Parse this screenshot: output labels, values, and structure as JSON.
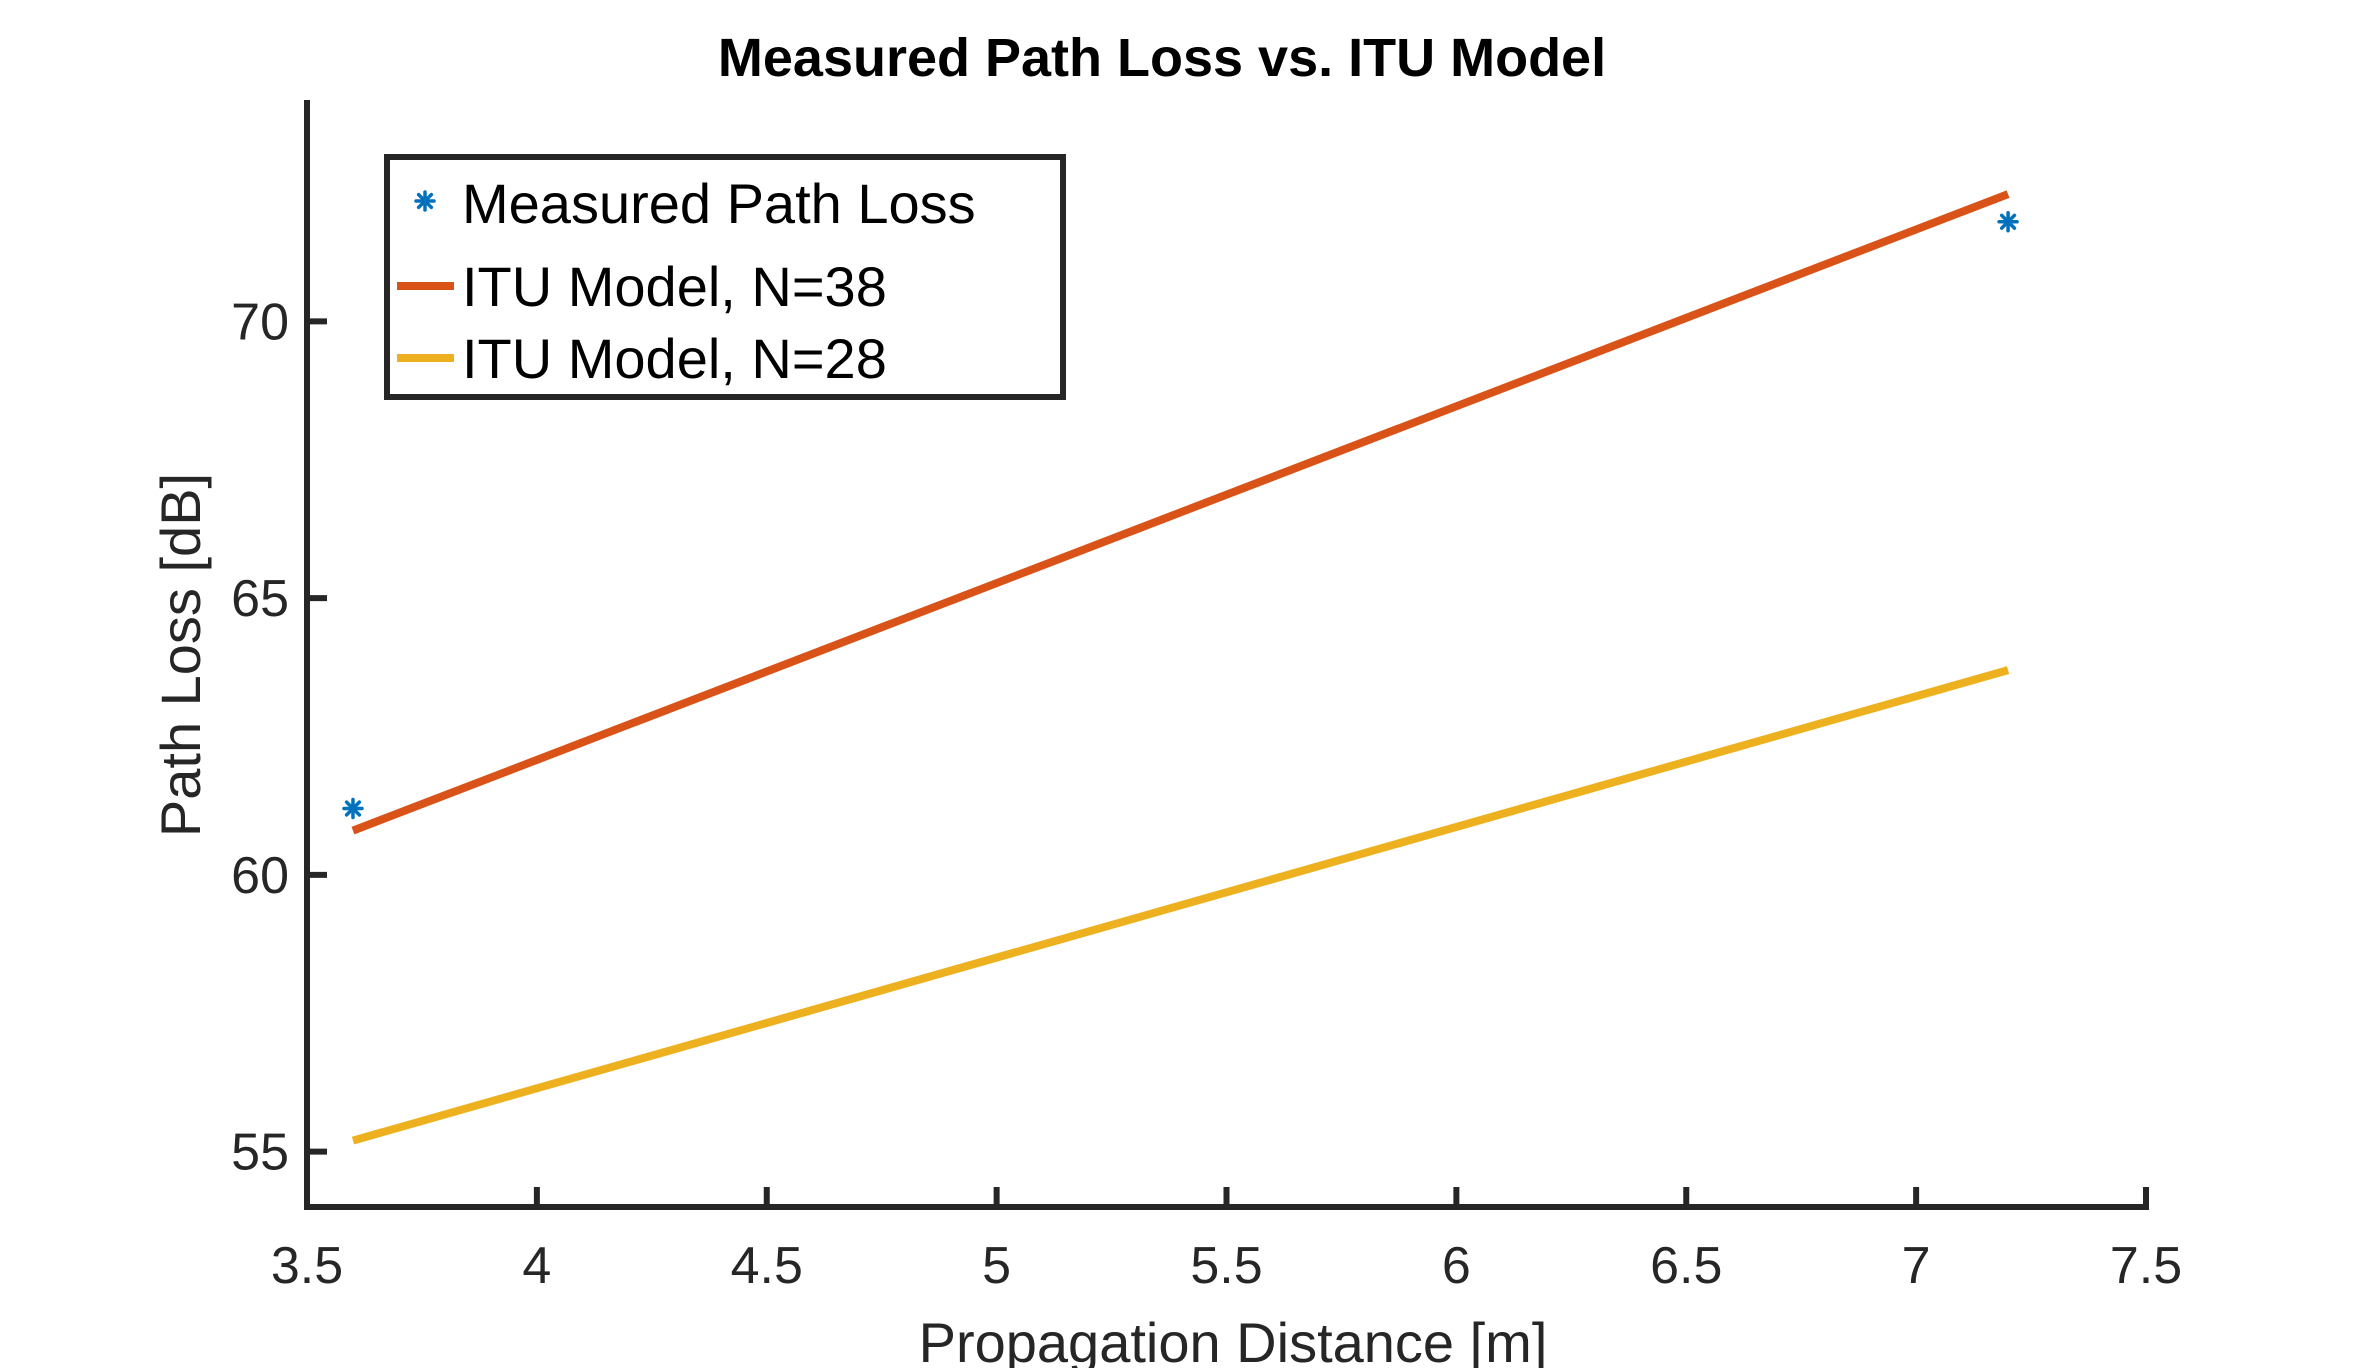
{
  "chart_data": {
    "type": "line",
    "title": "Measured Path Loss vs. ITU Model",
    "xlabel": "Propagation Distance [m]",
    "ylabel": "Path Loss [dB]",
    "xlim": [
      3.5,
      7.5
    ],
    "ylim": [
      54,
      74
    ],
    "xticks": [
      3.5,
      4,
      4.5,
      5,
      5.5,
      6,
      6.5,
      7,
      7.5
    ],
    "xtick_labels": [
      "3.5",
      "4",
      "4.5",
      "5",
      "5.5",
      "6",
      "6.5",
      "7",
      "7.5"
    ],
    "yticks": [
      55,
      60,
      65,
      70
    ],
    "ytick_labels": [
      "55",
      "60",
      "65",
      "70"
    ],
    "grid": false,
    "legend_position": "top-left",
    "series": [
      {
        "name": "Measured Path Loss",
        "kind": "scatter",
        "marker": "asterisk",
        "color": "#0072BD",
        "x": [
          3.6,
          7.2
        ],
        "y": [
          61.2,
          71.8
        ]
      },
      {
        "name": "ITU Model, N=38",
        "kind": "line",
        "color": "#D95319",
        "x": [
          3.6,
          7.2
        ],
        "y": [
          60.8,
          72.3
        ]
      },
      {
        "name": "ITU Model, N=28",
        "kind": "line",
        "color": "#EDB120",
        "x": [
          3.6,
          7.2
        ],
        "y": [
          55.2,
          63.7
        ]
      }
    ]
  }
}
